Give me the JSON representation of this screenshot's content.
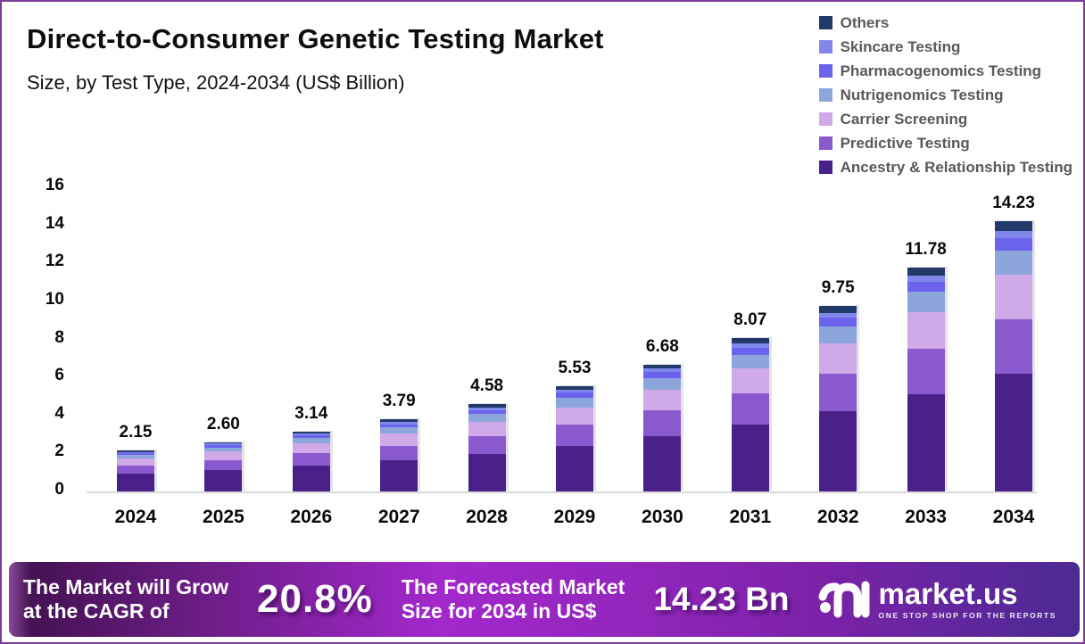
{
  "header": {
    "title": "Direct-to-Consumer Genetic Testing Market",
    "subtitle": "Size, by Test Type, 2024-2034 (US$ Billion)"
  },
  "legend": {
    "items": [
      {
        "label": "Others",
        "color": "#223A69"
      },
      {
        "label": "Skincare Testing",
        "color": "#7F88EA"
      },
      {
        "label": "Pharmacogenomics Testing",
        "color": "#6C63EC"
      },
      {
        "label": "Nutrigenomics Testing",
        "color": "#8CA6DB"
      },
      {
        "label": "Carrier Screening",
        "color": "#D0A9E8"
      },
      {
        "label": "Predictive Testing",
        "color": "#8A59CE"
      },
      {
        "label": "Ancestry & Relationship Testing",
        "color": "#4A2189"
      }
    ]
  },
  "chart_data": {
    "type": "bar",
    "stacked": true,
    "title": "Direct-to-Consumer Genetic Testing Market Size, by Test Type, 2024-2034 (US$ Billion)",
    "unit": "US$ Billion",
    "grid": false,
    "legend_position": "top-right",
    "ylim": [
      0,
      16
    ],
    "ytick_step": 2,
    "categories": [
      "2024",
      "2025",
      "2026",
      "2027",
      "2028",
      "2029",
      "2030",
      "2031",
      "2032",
      "2033",
      "2034"
    ],
    "totals": [
      2.15,
      2.6,
      3.14,
      3.79,
      4.58,
      5.53,
      6.68,
      8.07,
      9.75,
      11.78,
      14.23
    ],
    "total_labels": [
      "2.15",
      "2.60",
      "3.14",
      "3.79",
      "4.58",
      "5.53",
      "6.68",
      "8.07",
      "9.75",
      "11.78",
      "14.23"
    ],
    "series": [
      {
        "name": "Ancestry & Relationship Testing",
        "color": "#4A2189",
        "values": [
          0.94,
          1.13,
          1.37,
          1.65,
          1.99,
          2.41,
          2.91,
          3.51,
          4.24,
          5.13,
          6.19
        ]
      },
      {
        "name": "Predictive Testing",
        "color": "#8A59CE",
        "values": [
          0.44,
          0.53,
          0.64,
          0.77,
          0.93,
          1.12,
          1.36,
          1.64,
          1.98,
          2.39,
          2.89
        ]
      },
      {
        "name": "Carrier Screening",
        "color": "#D0A9E8",
        "values": [
          0.35,
          0.43,
          0.51,
          0.62,
          0.75,
          0.9,
          1.09,
          1.32,
          1.59,
          1.92,
          2.32
        ]
      },
      {
        "name": "Nutrigenomics Testing",
        "color": "#8CA6DB",
        "values": [
          0.19,
          0.23,
          0.28,
          0.34,
          0.41,
          0.5,
          0.6,
          0.73,
          0.88,
          1.06,
          1.28
        ]
      },
      {
        "name": "Pharmacogenomics Testing",
        "color": "#6C63EC",
        "values": [
          0.1,
          0.12,
          0.14,
          0.17,
          0.21,
          0.26,
          0.31,
          0.37,
          0.45,
          0.54,
          0.65
        ]
      },
      {
        "name": "Skincare Testing",
        "color": "#7F88EA",
        "values": [
          0.06,
          0.07,
          0.09,
          0.11,
          0.13,
          0.15,
          0.19,
          0.23,
          0.27,
          0.33,
          0.4
        ]
      },
      {
        "name": "Others",
        "color": "#223A69",
        "values": [
          0.07,
          0.09,
          0.11,
          0.13,
          0.16,
          0.19,
          0.22,
          0.27,
          0.34,
          0.41,
          0.5
        ]
      }
    ]
  },
  "footer": {
    "cagr_label_line1": "The Market will Grow",
    "cagr_label_line2": "at the CAGR of",
    "cagr_value": "20.8%",
    "forecast_label_line1": "The Forecasted Market",
    "forecast_label_line2": "Size for 2034 in US$",
    "forecast_value": "14.23 Bn",
    "brand_name": "market.us",
    "brand_tagline": "ONE STOP SHOP FOR THE REPORTS"
  }
}
